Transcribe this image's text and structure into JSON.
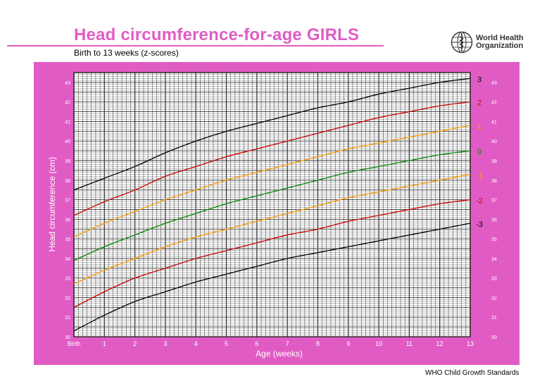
{
  "header": {
    "title": "Head circumference-for-age  GIRLS",
    "subtitle": "Birth to 13 weeks (z-scores)"
  },
  "organization": {
    "name_line1": "World Health",
    "name_line2": "Organization",
    "logo_icon": "who-emblem-icon"
  },
  "footer": {
    "text": "WHO Child Growth Standards"
  },
  "colors": {
    "panel": "#e05cc4",
    "title": "#e05cc4",
    "grid": "#333333",
    "z3": "#000000",
    "z2": "#cc0000",
    "z1": "#ff9900",
    "z0": "#008800"
  },
  "chart_data": {
    "type": "line",
    "xlabel": "Age (weeks)",
    "ylabel": "Head circumference (cm)",
    "xlim": [
      0,
      13
    ],
    "ylim": [
      30,
      43.5
    ],
    "x_ticks": [
      {
        "value": 0,
        "label": "Birth"
      },
      {
        "value": 1,
        "label": "1"
      },
      {
        "value": 2,
        "label": "2"
      },
      {
        "value": 3,
        "label": "3"
      },
      {
        "value": 4,
        "label": "4"
      },
      {
        "value": 5,
        "label": "5"
      },
      {
        "value": 6,
        "label": "6"
      },
      {
        "value": 7,
        "label": "7"
      },
      {
        "value": 8,
        "label": "8"
      },
      {
        "value": 9,
        "label": "9"
      },
      {
        "value": 10,
        "label": "10"
      },
      {
        "value": 11,
        "label": "11"
      },
      {
        "value": 12,
        "label": "12"
      },
      {
        "value": 13,
        "label": "13"
      }
    ],
    "y_ticks": [
      30,
      31,
      32,
      33,
      34,
      35,
      36,
      37,
      38,
      39,
      40,
      41,
      42,
      43
    ],
    "grid": true,
    "x": [
      0,
      1,
      2,
      3,
      4,
      5,
      6,
      7,
      8,
      9,
      10,
      11,
      12,
      13
    ],
    "series": [
      {
        "name": "3",
        "color": "#000000",
        "values": [
          37.5,
          38.1,
          38.7,
          39.4,
          40.0,
          40.5,
          40.9,
          41.3,
          41.7,
          42.0,
          42.4,
          42.7,
          43.0,
          43.2
        ]
      },
      {
        "name": "2",
        "color": "#cc0000",
        "values": [
          36.2,
          36.9,
          37.5,
          38.2,
          38.7,
          39.2,
          39.6,
          40.0,
          40.4,
          40.8,
          41.2,
          41.5,
          41.8,
          42.0
        ]
      },
      {
        "name": "1",
        "color": "#ff9900",
        "values": [
          35.1,
          35.8,
          36.4,
          37.0,
          37.5,
          38.0,
          38.4,
          38.8,
          39.2,
          39.6,
          39.9,
          40.2,
          40.5,
          40.8
        ]
      },
      {
        "name": "0",
        "color": "#008800",
        "values": [
          33.9,
          34.6,
          35.2,
          35.8,
          36.3,
          36.8,
          37.2,
          37.6,
          38.0,
          38.4,
          38.7,
          39.0,
          39.3,
          39.5
        ]
      },
      {
        "name": "-1",
        "color": "#ff9900",
        "values": [
          32.7,
          33.4,
          34.0,
          34.6,
          35.1,
          35.5,
          35.9,
          36.3,
          36.7,
          37.1,
          37.4,
          37.7,
          38.0,
          38.3
        ]
      },
      {
        "name": "-2",
        "color": "#cc0000",
        "values": [
          31.5,
          32.3,
          33.0,
          33.5,
          34.0,
          34.4,
          34.8,
          35.2,
          35.5,
          35.9,
          36.2,
          36.5,
          36.8,
          37.0
        ]
      },
      {
        "name": "-3",
        "color": "#000000",
        "values": [
          30.3,
          31.1,
          31.8,
          32.3,
          32.8,
          33.2,
          33.6,
          34.0,
          34.3,
          34.6,
          34.9,
          35.2,
          35.5,
          35.8
        ]
      }
    ]
  }
}
